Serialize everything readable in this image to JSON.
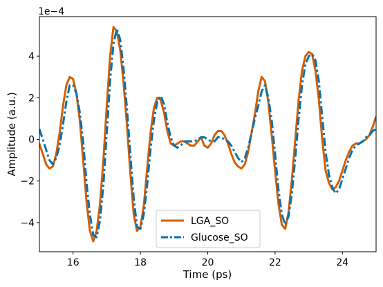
{
  "chart_data": {
    "type": "line",
    "title": "",
    "xlabel": "Time (ps)",
    "ylabel": "Amplitude (a.u.)",
    "offset_label": "1e−4",
    "xlim": [
      15.0,
      25.0
    ],
    "ylim": [
      -5.4,
      5.9
    ],
    "scale_factor": 0.0001,
    "xticks": [
      16,
      18,
      20,
      22,
      24
    ],
    "yticks": [
      -4,
      -2,
      0,
      2,
      4
    ],
    "ytick_labels": [
      "−4",
      "−2",
      "0",
      "2",
      "4"
    ],
    "grid": false,
    "legend_position": "lower center",
    "series": [
      {
        "name": "LGA_SO",
        "color": "#d55e00",
        "linestyle": "solid",
        "points": [
          [
            15.0,
            -0.2
          ],
          [
            15.1,
            -0.7
          ],
          [
            15.2,
            -1.2
          ],
          [
            15.3,
            -1.4
          ],
          [
            15.4,
            -1.3
          ],
          [
            15.5,
            -0.7
          ],
          [
            15.6,
            0.3
          ],
          [
            15.7,
            1.6
          ],
          [
            15.8,
            2.6
          ],
          [
            15.9,
            3.0
          ],
          [
            16.0,
            2.9
          ],
          [
            16.1,
            2.2
          ],
          [
            16.2,
            0.9
          ],
          [
            16.3,
            -1.0
          ],
          [
            16.4,
            -3.0
          ],
          [
            16.5,
            -4.4
          ],
          [
            16.6,
            -4.9
          ],
          [
            16.7,
            -4.4
          ],
          [
            16.8,
            -3.1
          ],
          [
            16.9,
            -1.0
          ],
          [
            17.0,
            1.6
          ],
          [
            17.1,
            4.0
          ],
          [
            17.2,
            5.4
          ],
          [
            17.3,
            5.2
          ],
          [
            17.4,
            4.3
          ],
          [
            17.5,
            2.7
          ],
          [
            17.6,
            0.7
          ],
          [
            17.7,
            -1.6
          ],
          [
            17.8,
            -3.6
          ],
          [
            17.9,
            -4.4
          ],
          [
            18.0,
            -4.2
          ],
          [
            18.1,
            -3.2
          ],
          [
            18.2,
            -1.4
          ],
          [
            18.3,
            0.3
          ],
          [
            18.4,
            1.5
          ],
          [
            18.5,
            2.0
          ],
          [
            18.6,
            1.9
          ],
          [
            18.7,
            1.3
          ],
          [
            18.8,
            0.4
          ],
          [
            18.9,
            -0.2
          ],
          [
            19.0,
            -0.3
          ],
          [
            19.1,
            -0.2
          ],
          [
            19.2,
            -0.1
          ],
          [
            19.3,
            -0.1
          ],
          [
            19.4,
            -0.2
          ],
          [
            19.5,
            -0.3
          ],
          [
            19.6,
            -0.3
          ],
          [
            19.7,
            -0.1
          ],
          [
            19.8,
            0.1
          ],
          [
            19.9,
            -0.3
          ],
          [
            20.0,
            -0.4
          ],
          [
            20.1,
            -0.2
          ],
          [
            20.2,
            0.2
          ],
          [
            20.3,
            0.4
          ],
          [
            20.4,
            0.4
          ],
          [
            20.5,
            0.2
          ],
          [
            20.6,
            -0.2
          ],
          [
            20.7,
            -0.7
          ],
          [
            20.8,
            -1.1
          ],
          [
            20.9,
            -1.3
          ],
          [
            21.0,
            -1.4
          ],
          [
            21.1,
            -1.2
          ],
          [
            21.2,
            -0.6
          ],
          [
            21.3,
            0.3
          ],
          [
            21.4,
            1.2
          ],
          [
            21.5,
            2.3
          ],
          [
            21.6,
            3.0
          ],
          [
            21.7,
            2.8
          ],
          [
            21.8,
            1.8
          ],
          [
            21.9,
            0.2
          ],
          [
            22.0,
            -1.5
          ],
          [
            22.1,
            -3.1
          ],
          [
            22.2,
            -4.1
          ],
          [
            22.3,
            -4.3
          ],
          [
            22.4,
            -3.5
          ],
          [
            22.5,
            -1.9
          ],
          [
            22.6,
            0.0
          ],
          [
            22.7,
            1.9
          ],
          [
            22.8,
            3.3
          ],
          [
            22.9,
            4.0
          ],
          [
            23.0,
            4.2
          ],
          [
            23.1,
            4.1
          ],
          [
            23.2,
            3.3
          ],
          [
            23.3,
            1.9
          ],
          [
            23.4,
            0.0
          ],
          [
            23.5,
            -1.5
          ],
          [
            23.6,
            -2.1
          ],
          [
            23.7,
            -2.4
          ],
          [
            23.8,
            -2.3
          ],
          [
            23.9,
            -2.0
          ],
          [
            24.0,
            -1.5
          ],
          [
            24.1,
            -1.0
          ],
          [
            24.2,
            -0.6
          ],
          [
            24.3,
            -0.3
          ],
          [
            24.4,
            -0.2
          ],
          [
            24.5,
            -0.2
          ],
          [
            24.6,
            -0.1
          ],
          [
            24.7,
            0.0
          ],
          [
            24.8,
            0.2
          ],
          [
            24.9,
            0.6
          ],
          [
            25.0,
            1.1
          ]
        ]
      },
      {
        "name": "Glucose_SO",
        "color": "#0072b2",
        "linestyle": "dashdot",
        "points": [
          [
            15.0,
            0.5
          ],
          [
            15.1,
            0.0
          ],
          [
            15.2,
            -0.5
          ],
          [
            15.3,
            -1.0
          ],
          [
            15.4,
            -1.2
          ],
          [
            15.5,
            -0.9
          ],
          [
            15.6,
            -0.3
          ],
          [
            15.7,
            0.7
          ],
          [
            15.8,
            1.8
          ],
          [
            15.9,
            2.6
          ],
          [
            16.0,
            2.6
          ],
          [
            16.1,
            2.2
          ],
          [
            16.2,
            1.3
          ],
          [
            16.3,
            -0.1
          ],
          [
            16.4,
            -2.1
          ],
          [
            16.5,
            -3.6
          ],
          [
            16.6,
            -4.6
          ],
          [
            16.7,
            -4.7
          ],
          [
            16.8,
            -3.9
          ],
          [
            16.9,
            -2.2
          ],
          [
            17.0,
            0.3
          ],
          [
            17.1,
            2.8
          ],
          [
            17.2,
            4.6
          ],
          [
            17.3,
            5.3
          ],
          [
            17.4,
            4.8
          ],
          [
            17.5,
            3.4
          ],
          [
            17.6,
            1.5
          ],
          [
            17.7,
            -0.7
          ],
          [
            17.8,
            -2.8
          ],
          [
            17.9,
            -4.2
          ],
          [
            18.0,
            -4.3
          ],
          [
            18.1,
            -3.6
          ],
          [
            18.2,
            -2.2
          ],
          [
            18.3,
            -0.5
          ],
          [
            18.4,
            0.9
          ],
          [
            18.5,
            1.8
          ],
          [
            18.6,
            2.1
          ],
          [
            18.7,
            1.7
          ],
          [
            18.8,
            0.8
          ],
          [
            18.9,
            0.1
          ],
          [
            19.0,
            -0.3
          ],
          [
            19.1,
            -0.4
          ],
          [
            19.2,
            -0.3
          ],
          [
            19.3,
            -0.1
          ],
          [
            19.4,
            -0.1
          ],
          [
            19.5,
            -0.1
          ],
          [
            19.6,
            -0.1
          ],
          [
            19.7,
            0.0
          ],
          [
            19.8,
            0.1
          ],
          [
            19.9,
            0.1
          ],
          [
            20.0,
            0.0
          ],
          [
            20.1,
            -0.1
          ],
          [
            20.2,
            -0.1
          ],
          [
            20.3,
            0.1
          ],
          [
            20.4,
            0.1
          ],
          [
            20.5,
            0.0
          ],
          [
            20.6,
            -0.1
          ],
          [
            20.7,
            -0.3
          ],
          [
            20.8,
            -0.6
          ],
          [
            20.9,
            -0.9
          ],
          [
            21.0,
            -1.1
          ],
          [
            21.1,
            -0.9
          ],
          [
            21.2,
            -0.4
          ],
          [
            21.3,
            0.3
          ],
          [
            21.4,
            1.0
          ],
          [
            21.5,
            1.6
          ],
          [
            21.6,
            2.3
          ],
          [
            21.7,
            2.6
          ],
          [
            21.8,
            2.0
          ],
          [
            21.9,
            0.9
          ],
          [
            22.0,
            -0.7
          ],
          [
            22.1,
            -2.4
          ],
          [
            22.2,
            -3.6
          ],
          [
            22.3,
            -4.1
          ],
          [
            22.4,
            -3.7
          ],
          [
            22.5,
            -2.6
          ],
          [
            22.6,
            -0.9
          ],
          [
            22.7,
            1.0
          ],
          [
            22.8,
            2.6
          ],
          [
            22.9,
            3.6
          ],
          [
            23.0,
            4.0
          ],
          [
            23.1,
            4.1
          ],
          [
            23.2,
            3.8
          ],
          [
            23.3,
            2.8
          ],
          [
            23.4,
            1.1
          ],
          [
            23.5,
            -0.6
          ],
          [
            23.6,
            -1.7
          ],
          [
            23.7,
            -2.3
          ],
          [
            23.8,
            -2.6
          ],
          [
            23.9,
            -2.4
          ],
          [
            24.0,
            -1.9
          ],
          [
            24.1,
            -1.4
          ],
          [
            24.2,
            -0.9
          ],
          [
            24.3,
            -0.5
          ],
          [
            24.4,
            -0.3
          ],
          [
            24.5,
            -0.2
          ],
          [
            24.6,
            -0.1
          ],
          [
            24.7,
            0.1
          ],
          [
            24.8,
            0.2
          ],
          [
            24.9,
            0.4
          ],
          [
            25.0,
            0.5
          ]
        ]
      }
    ]
  }
}
